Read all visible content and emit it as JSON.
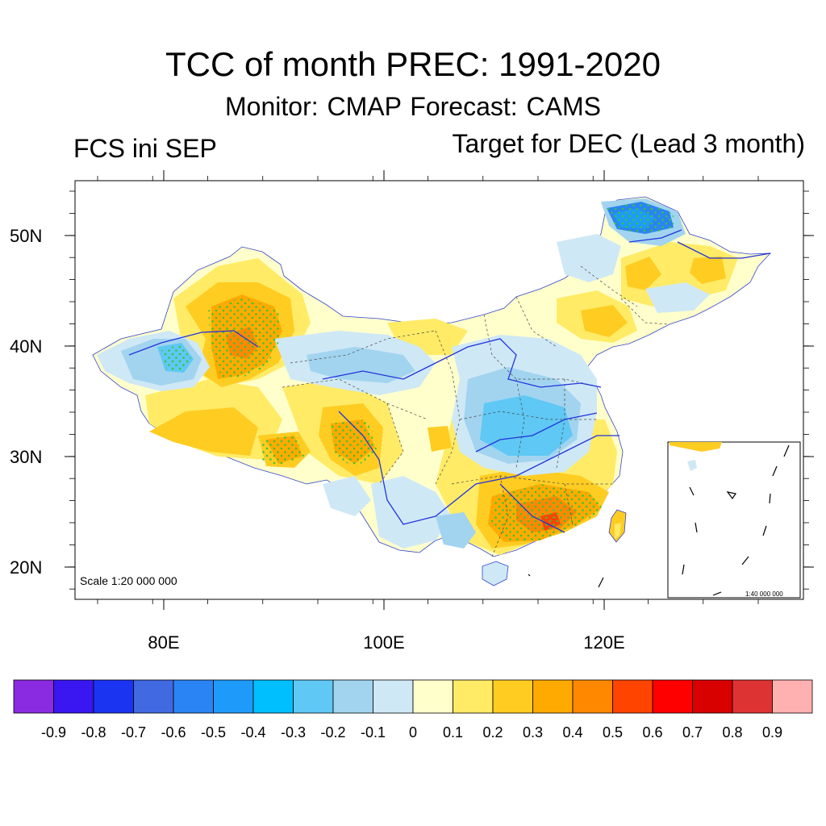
{
  "header": {
    "title": "TCC of month PREC: 1991-2020",
    "subtitle": "Monitor: CMAP   Forecast: CAMS",
    "left_label": "FCS ini SEP",
    "right_label": "Target for DEC (Lead 3 month)"
  },
  "map": {
    "lat_ticks": [
      "50N",
      "40N",
      "30N",
      "20N"
    ],
    "lon_ticks": [
      "80E",
      "100E",
      "120E"
    ],
    "scale_label": "Scale 1:20 000 000",
    "inset_scale_label": "1:40 000 000",
    "significance_dot_color": "#32c832",
    "boundary_color": "#1e2ee0"
  },
  "colorbar": {
    "colors": [
      "#8a2be2",
      "#3a16f0",
      "#1b34f2",
      "#4169e1",
      "#2a84f4",
      "#1e9bfa",
      "#00bfff",
      "#5fc8f4",
      "#a2d4ef",
      "#cfe8f6",
      "#ffffcc",
      "#ffeb66",
      "#ffcc22",
      "#ffaa00",
      "#ff8800",
      "#ff4400",
      "#ff0000",
      "#d90000",
      "#dd3333",
      "#ffb0b0"
    ],
    "labels": [
      "-0.9",
      "-0.8",
      "-0.7",
      "-0.6",
      "-0.5",
      "-0.4",
      "-0.3",
      "-0.2",
      "-0.1",
      "0",
      "0.1",
      "0.2",
      "0.3",
      "0.4",
      "0.5",
      "0.6",
      "0.7",
      "0.8",
      "0.9"
    ]
  }
}
